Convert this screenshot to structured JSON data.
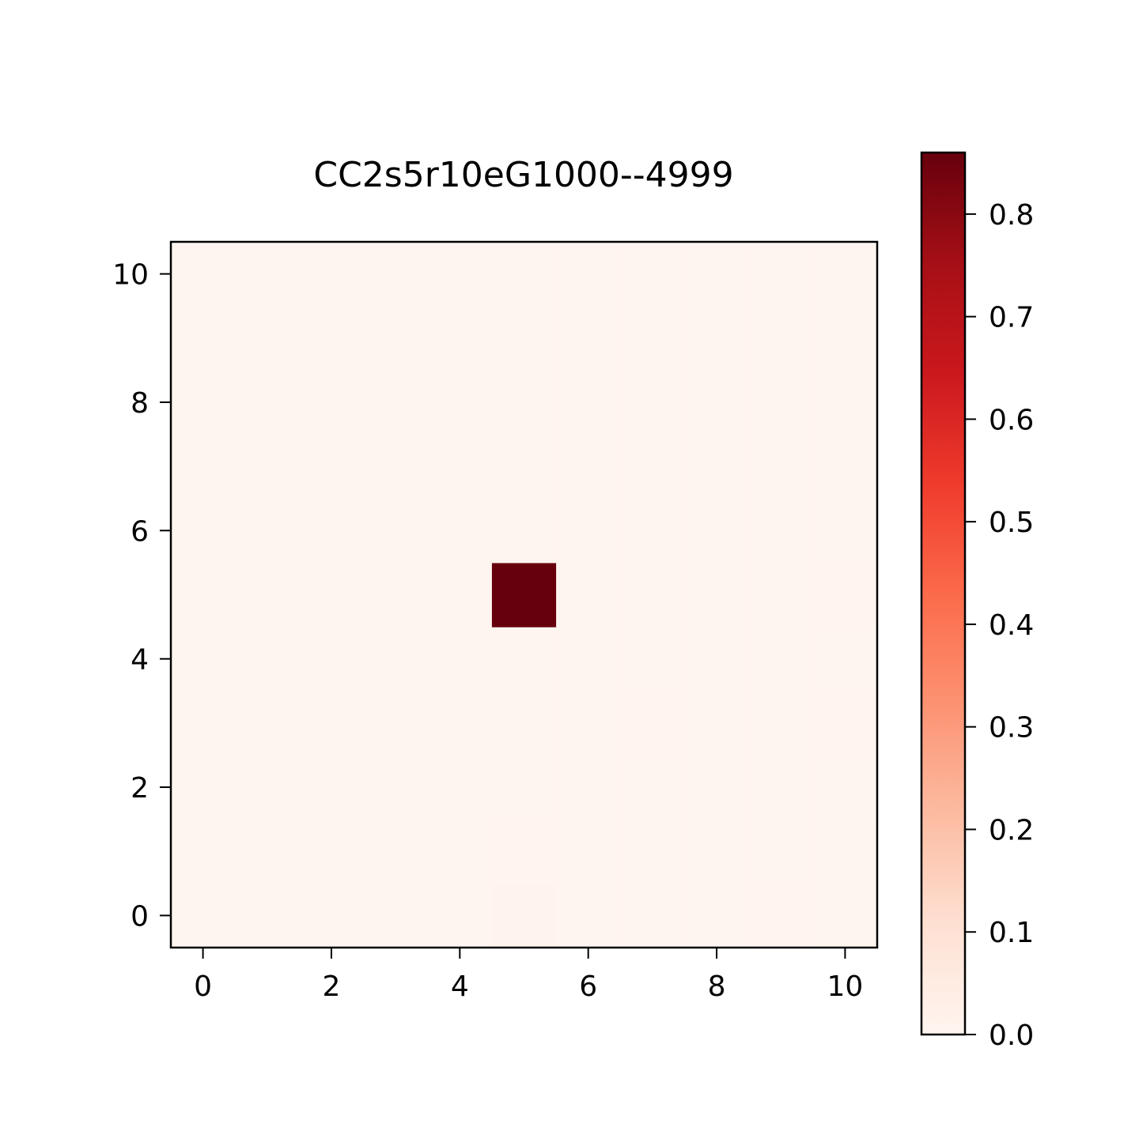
{
  "chart_data": {
    "type": "heatmap",
    "title": "CC2s5r10eG1000--4999",
    "xlabel": "",
    "ylabel": "",
    "x_range": [
      -0.5,
      10.5
    ],
    "y_range": [
      -0.5,
      10.5
    ],
    "x_ticks": [
      "0",
      "2",
      "4",
      "6",
      "8",
      "10"
    ],
    "y_ticks": [
      "0",
      "2",
      "4",
      "6",
      "8",
      "10"
    ],
    "colormap": "Reds",
    "colorbar": {
      "min": 0.0,
      "max": 0.86,
      "ticks": [
        "0.0",
        "0.1",
        "0.2",
        "0.3",
        "0.4",
        "0.5",
        "0.6",
        "0.7",
        "0.8"
      ]
    },
    "origin": "lower",
    "rows_y0_to_y10": [
      [
        0,
        0,
        0,
        0,
        0,
        0.012,
        0,
        0,
        0,
        0.004,
        0.002
      ],
      [
        0,
        0,
        0,
        0,
        0,
        0.004,
        0,
        0.002,
        0,
        0,
        0.002
      ],
      [
        0,
        0,
        0,
        0,
        0,
        0,
        0,
        0,
        0,
        0,
        0
      ],
      [
        0,
        0,
        0,
        0,
        0,
        0,
        0,
        0.005,
        0,
        0,
        0.003
      ],
      [
        0,
        0,
        0,
        0,
        0,
        0,
        0,
        0,
        0,
        0,
        0
      ],
      [
        0,
        0,
        0,
        0,
        0,
        0.86,
        0,
        0,
        0,
        0.002,
        0.004
      ],
      [
        0,
        0,
        0,
        0,
        0,
        0,
        0,
        0,
        0,
        0,
        0
      ],
      [
        0,
        0,
        0,
        0,
        0,
        0,
        0,
        0,
        0,
        0,
        0
      ],
      [
        0,
        0,
        0,
        0,
        0,
        0,
        0,
        0,
        0,
        0,
        0
      ],
      [
        0,
        0,
        0,
        0,
        0,
        0,
        0,
        0,
        0,
        0,
        0
      ],
      [
        0,
        0,
        0,
        0,
        0,
        0,
        0,
        0,
        0,
        0,
        0
      ]
    ],
    "grid": false
  }
}
